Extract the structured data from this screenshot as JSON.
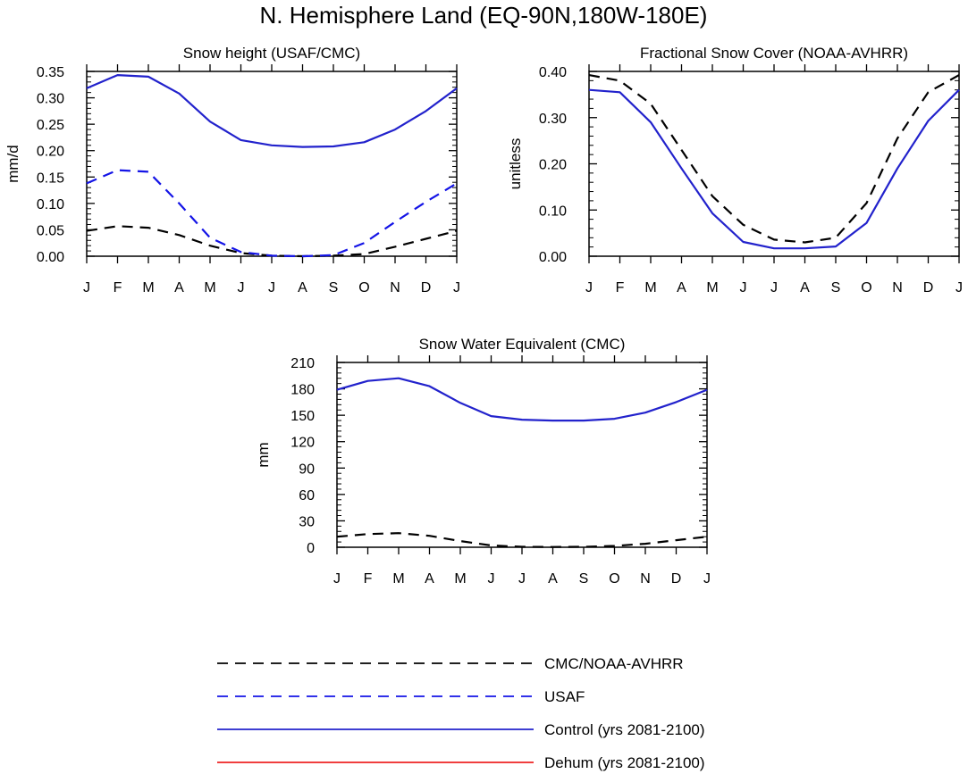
{
  "figure": {
    "title": "N. Hemisphere Land (EQ-90N,180W-180E)"
  },
  "styles": {
    "cmc": {
      "color": "#000000",
      "dash": "12 8"
    },
    "usaf": {
      "color": "#1414e6",
      "dash": "12 8"
    },
    "control": {
      "color": "#2222cc",
      "dash": ""
    },
    "dehum": {
      "color": "#ee2222",
      "dash": ""
    }
  },
  "legend": {
    "placement": "bottom",
    "entries": [
      {
        "key": "cmc",
        "label": "CMC/NOAA-AVHRR"
      },
      {
        "key": "usaf",
        "label": "USAF"
      },
      {
        "key": "control",
        "label": "Control (yrs 2081-2100)"
      },
      {
        "key": "dehum",
        "label": "Dehum (yrs 2081-2100)"
      }
    ]
  },
  "chart_data": [
    {
      "type": "line",
      "title": "Snow height (USAF/CMC)",
      "xlabel": "",
      "ylabel": "mm/d",
      "categories": [
        "J",
        "F",
        "M",
        "A",
        "M",
        "J",
        "J",
        "A",
        "S",
        "O",
        "N",
        "D",
        "J"
      ],
      "ylim": [
        0,
        0.35
      ],
      "yticks": [
        0,
        0.05,
        0.1,
        0.15,
        0.2,
        0.25,
        0.3,
        0.35
      ],
      "yticklabels": [
        "0.00",
        "0.05",
        "0.10",
        "0.15",
        "0.20",
        "0.25",
        "0.30",
        "0.35"
      ],
      "grid": false,
      "series": [
        {
          "name": "CMC/NOAA-AVHRR",
          "style": "cmc",
          "values": [
            0.048,
            0.057,
            0.054,
            0.04,
            0.02,
            0.006,
            0.001,
            0.0,
            0.001,
            0.004,
            0.018,
            0.033,
            0.048
          ]
        },
        {
          "name": "USAF",
          "style": "usaf",
          "values": [
            0.138,
            0.163,
            0.16,
            0.1,
            0.035,
            0.008,
            0.001,
            0.0,
            0.002,
            0.025,
            0.065,
            0.103,
            0.138
          ]
        },
        {
          "name": "Control (yrs 2081-2100)",
          "style": "control",
          "values": [
            0.318,
            0.343,
            0.34,
            0.308,
            0.255,
            0.22,
            0.21,
            0.207,
            0.208,
            0.216,
            0.24,
            0.275,
            0.318
          ]
        }
      ]
    },
    {
      "type": "line",
      "title": "Fractional Snow Cover (NOAA-AVHRR)",
      "xlabel": "",
      "ylabel": "unitless",
      "categories": [
        "J",
        "F",
        "M",
        "A",
        "M",
        "J",
        "J",
        "A",
        "S",
        "O",
        "N",
        "D",
        "J"
      ],
      "ylim": [
        0,
        0.4
      ],
      "yticks": [
        0,
        0.1,
        0.2,
        0.3,
        0.4
      ],
      "yticklabels": [
        "0.00",
        "0.10",
        "0.20",
        "0.30",
        "0.40"
      ],
      "grid": false,
      "series": [
        {
          "name": "CMC/NOAA-AVHRR",
          "style": "cmc",
          "values": [
            0.392,
            0.38,
            0.33,
            0.23,
            0.13,
            0.068,
            0.036,
            0.03,
            0.04,
            0.115,
            0.255,
            0.355,
            0.392
          ]
        },
        {
          "name": "Control (yrs 2081-2100)",
          "style": "control",
          "values": [
            0.36,
            0.355,
            0.29,
            0.19,
            0.093,
            0.031,
            0.017,
            0.017,
            0.021,
            0.072,
            0.19,
            0.293,
            0.36
          ]
        }
      ]
    },
    {
      "type": "line",
      "title": "Snow Water Equivalent (CMC)",
      "xlabel": "",
      "ylabel": "mm",
      "categories": [
        "J",
        "F",
        "M",
        "A",
        "M",
        "J",
        "J",
        "A",
        "S",
        "O",
        "N",
        "D",
        "J"
      ],
      "ylim": [
        0,
        210
      ],
      "yticks": [
        0,
        30,
        60,
        90,
        120,
        150,
        180,
        210
      ],
      "yticklabels": [
        "0",
        "30",
        "60",
        "90",
        "120",
        "150",
        "180",
        "210"
      ],
      "grid": false,
      "series": [
        {
          "name": "CMC/NOAA-AVHRR",
          "style": "cmc",
          "values": [
            12,
            15,
            16,
            13,
            7,
            2,
            0.5,
            0.3,
            0.5,
            1.5,
            4,
            8,
            12
          ]
        },
        {
          "name": "Control (yrs 2081-2100)",
          "style": "control",
          "values": [
            179,
            189,
            192,
            183,
            164,
            149,
            145,
            144,
            144,
            146,
            153,
            165,
            179
          ]
        }
      ]
    }
  ]
}
